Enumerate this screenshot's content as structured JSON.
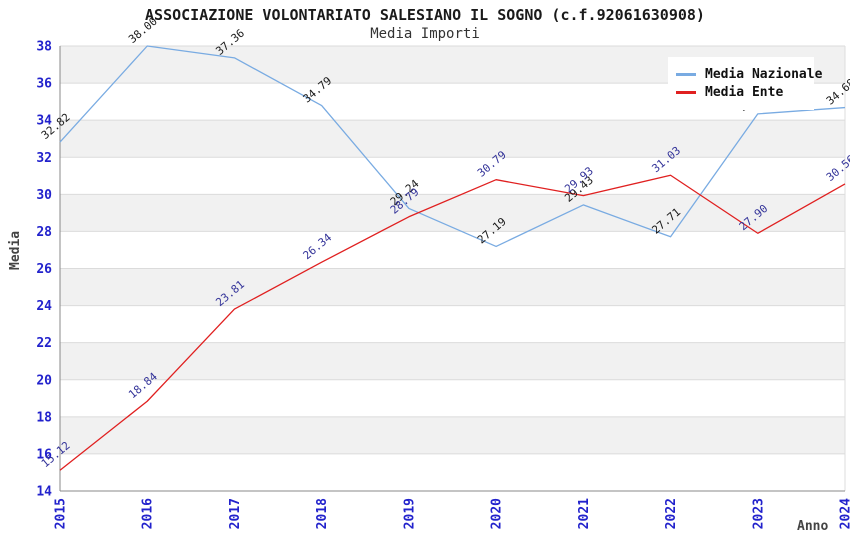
{
  "chart_data": {
    "type": "line",
    "title": "ASSOCIAZIONE VOLONTARIATO SALESIANO IL SOGNO (c.f.92061630908)",
    "subtitle": "Media Importi",
    "xlabel": "Anno",
    "ylabel": "Media",
    "categories": [
      "2015",
      "2016",
      "2017",
      "2018",
      "2019",
      "2020",
      "2021",
      "2022",
      "2023",
      "2024"
    ],
    "series": [
      {
        "name": "Media Nazionale",
        "color": "#79ABE2",
        "label_color": "#1A1A1A",
        "values": [
          32.82,
          38.0,
          37.36,
          34.79,
          29.24,
          27.19,
          29.43,
          27.71,
          34.34,
          34.68
        ],
        "point_labels": [
          "32.82",
          "38.00",
          "37.36",
          "34.79",
          "29.24",
          "27.19",
          "29.43",
          "27.71",
          "34.34",
          "34.68"
        ]
      },
      {
        "name": "Media Ente",
        "color": "#E02020",
        "label_color": "#333399",
        "values": [
          15.12,
          18.84,
          23.81,
          26.34,
          28.79,
          30.79,
          29.93,
          31.03,
          27.9,
          30.56
        ],
        "point_labels": [
          "15.12",
          "18.84",
          "23.81",
          "26.34",
          "28.79",
          "30.79",
          "29.93",
          "31.03",
          "27.90",
          "30.56"
        ]
      }
    ],
    "ylim": [
      14,
      38
    ],
    "ytick_step": 2,
    "grid": true,
    "legend_position": "top-right",
    "band_fill": "#F1F1F1",
    "gridline_color": "#DBDBDB",
    "axis_color": "#888888",
    "tick_label_color": "#2222CC"
  }
}
